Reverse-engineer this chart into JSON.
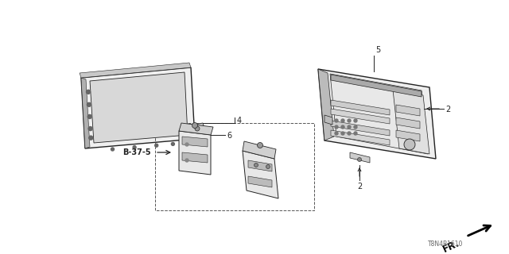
{
  "bg_color": "#ffffff",
  "lc": "#222222",
  "lc_light": "#555555",
  "title_code": "T8N4B1610",
  "fr_label": "FR.",
  "figsize": [
    6.4,
    3.2
  ],
  "dpi": 100
}
